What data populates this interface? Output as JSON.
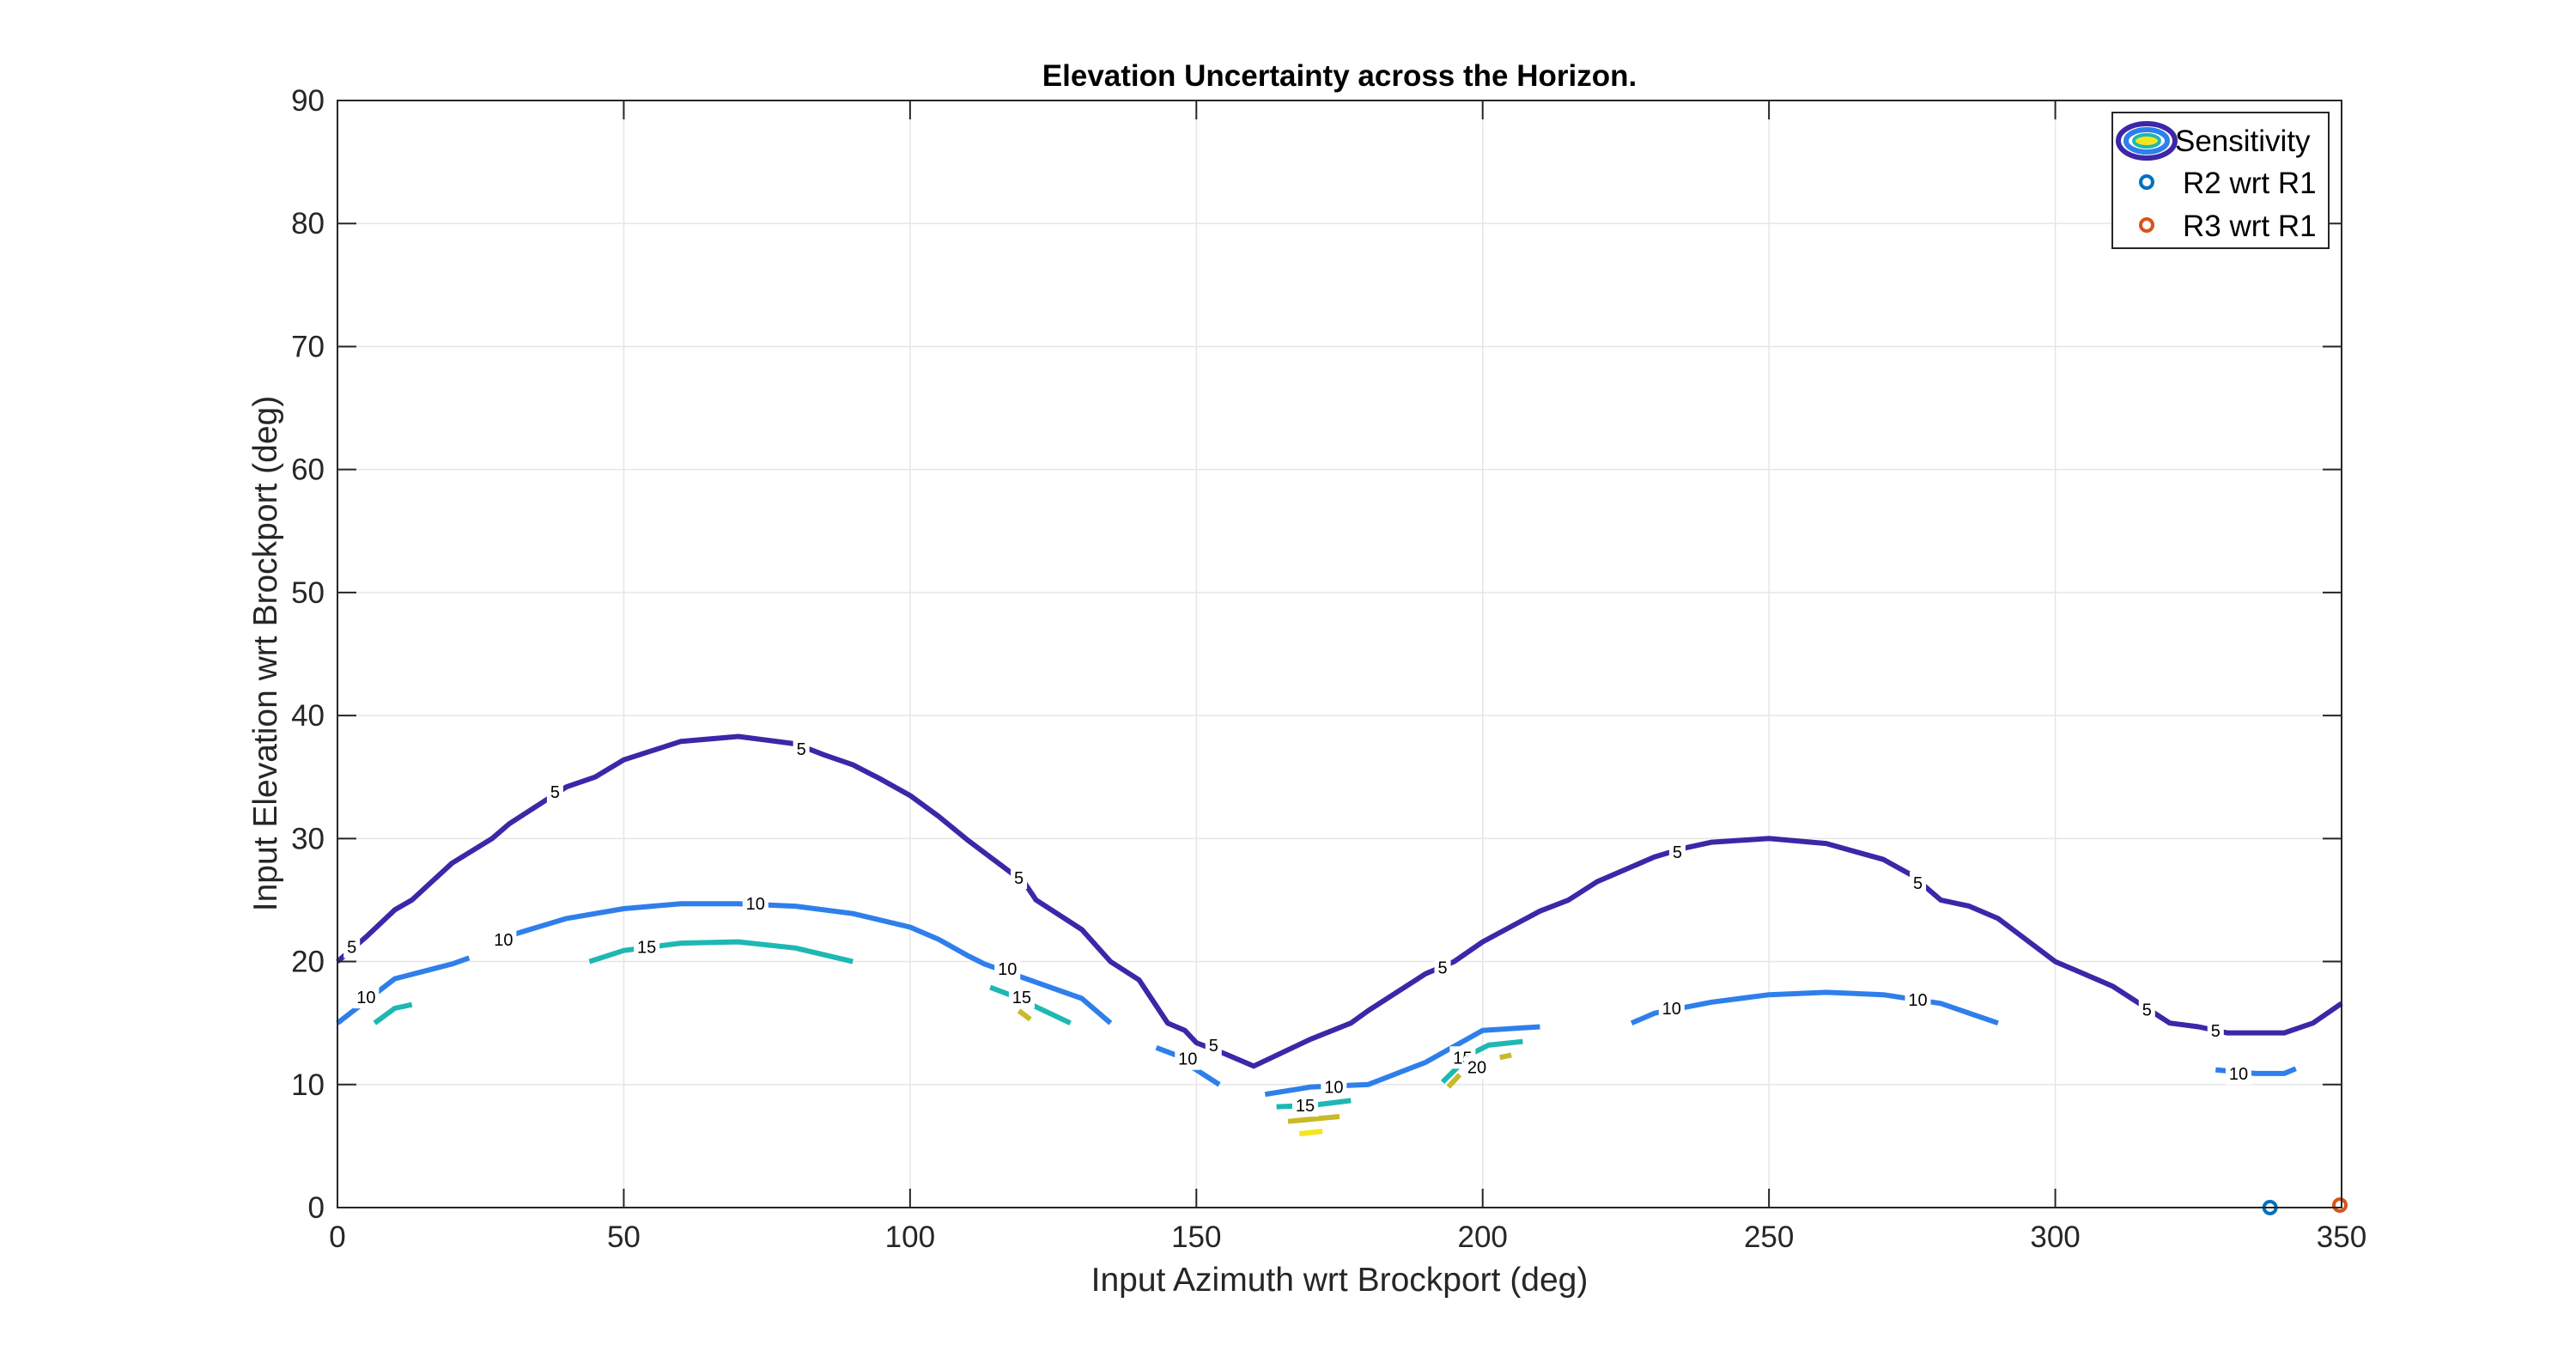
{
  "chart_data": {
    "type": "contour",
    "title": "Elevation Uncertainty across the Horizon.",
    "xlabel": "Input Azimuth wrt Brockport (deg)",
    "ylabel": "Input Elevation wrt Brockport (deg)",
    "xlim": [
      0,
      350
    ],
    "ylim": [
      0,
      90
    ],
    "xticks": [
      0,
      50,
      100,
      150,
      200,
      250,
      300,
      350
    ],
    "yticks": [
      0,
      10,
      20,
      30,
      40,
      50,
      60,
      70,
      80,
      90
    ],
    "grid": true,
    "legend": {
      "placement": "top-right",
      "entries": [
        {
          "label": "Sensitivity",
          "marker": "contour-swatch"
        },
        {
          "label": "R2 wrt R1",
          "marker": "circle",
          "color": "#0072BD"
        },
        {
          "label": "R3 wrt R1",
          "marker": "circle",
          "color": "#D95319"
        }
      ]
    },
    "contours": [
      {
        "level": 5,
        "color": "#3E26A8",
        "segments": [
          [
            [
              0,
              20
            ],
            [
              5,
              22
            ],
            [
              10,
              24.2
            ],
            [
              13,
              25
            ],
            [
              20,
              28
            ],
            [
              27,
              30
            ],
            [
              30,
              31.2
            ],
            [
              40,
              34.2
            ],
            [
              45,
              35
            ],
            [
              50,
              36.4
            ],
            [
              60,
              37.9
            ],
            [
              70,
              38.3
            ],
            [
              80,
              37.7
            ],
            [
              85,
              36.8
            ],
            [
              90,
              36
            ],
            [
              95,
              34.8
            ],
            [
              100,
              33.5
            ],
            [
              105,
              31.8
            ],
            [
              110,
              29.9
            ],
            [
              120,
              26.4
            ],
            [
              122,
              25
            ],
            [
              130,
              22.6
            ],
            [
              135,
              20
            ],
            [
              140,
              18.5
            ],
            [
              145,
              15
            ],
            [
              148,
              14.4
            ],
            [
              150,
              13.4
            ],
            [
              155,
              12.5
            ],
            [
              160,
              11.5
            ],
            [
              170,
              13.7
            ],
            [
              177,
              15
            ],
            [
              180,
              16
            ],
            [
              190,
              19
            ],
            [
              195,
              20
            ],
            [
              200,
              21.6
            ],
            [
              210,
              24.1
            ],
            [
              215,
              25
            ],
            [
              220,
              26.5
            ],
            [
              230,
              28.5
            ],
            [
              235,
              29.2
            ],
            [
              240,
              29.7
            ],
            [
              250,
              30
            ],
            [
              260,
              29.6
            ],
            [
              270,
              28.3
            ],
            [
              275,
              27
            ],
            [
              280,
              25
            ],
            [
              285,
              24.5
            ],
            [
              290,
              23.5
            ],
            [
              300,
              20
            ],
            [
              310,
              18
            ],
            [
              315,
              16.5
            ],
            [
              320,
              15
            ],
            [
              325,
              14.7
            ],
            [
              330,
              14.2
            ],
            [
              340,
              14.2
            ],
            [
              345,
              15
            ],
            [
              350,
              16.6
            ]
          ]
        ],
        "labels": [
          {
            "x": 2.5,
            "y": 21.2,
            "text": "5"
          },
          {
            "x": 38,
            "y": 33.8,
            "text": "5"
          },
          {
            "x": 81,
            "y": 37.3,
            "text": "5"
          },
          {
            "x": 119,
            "y": 26.8,
            "text": "5"
          },
          {
            "x": 153,
            "y": 13.2,
            "text": "5"
          },
          {
            "x": 193,
            "y": 19.5,
            "text": "5"
          },
          {
            "x": 234,
            "y": 28.9,
            "text": "5"
          },
          {
            "x": 276,
            "y": 26.4,
            "text": "5"
          },
          {
            "x": 316,
            "y": 16.1,
            "text": "5"
          },
          {
            "x": 328,
            "y": 14.4,
            "text": "5"
          }
        ]
      },
      {
        "level": 10,
        "color": "#2F7FEB",
        "segments": [
          [
            [
              0,
              15
            ],
            [
              10,
              18.6
            ],
            [
              20,
              19.8
            ],
            [
              23,
              20.3
            ]
          ],
          [
            [
              27,
              21.6
            ],
            [
              30,
              22.1
            ],
            [
              40,
              23.5
            ],
            [
              50,
              24.3
            ],
            [
              60,
              24.7
            ],
            [
              70,
              24.7
            ],
            [
              80,
              24.5
            ],
            [
              90,
              23.9
            ],
            [
              100,
              22.8
            ],
            [
              105,
              21.8
            ],
            [
              110,
              20.5
            ],
            [
              113,
              19.8
            ],
            [
              130,
              17
            ],
            [
              135,
              15
            ]
          ],
          [
            [
              143,
              13
            ],
            [
              147,
              12.3
            ],
            [
              148,
              11.8
            ],
            [
              154,
              10
            ]
          ],
          [
            [
              162,
              9.2
            ],
            [
              170,
              9.8
            ],
            [
              180,
              10
            ],
            [
              190,
              11.8
            ],
            [
              200,
              14.4
            ],
            [
              210,
              14.7
            ]
          ],
          [
            [
              226,
              15
            ],
            [
              230,
              15.8
            ],
            [
              240,
              16.7
            ],
            [
              250,
              17.3
            ],
            [
              260,
              17.5
            ],
            [
              270,
              17.3
            ],
            [
              280,
              16.6
            ],
            [
              290,
              15
            ]
          ],
          [
            [
              328,
              11.2
            ],
            [
              335,
              10.9
            ],
            [
              340,
              10.9
            ],
            [
              342,
              11.3
            ]
          ]
        ],
        "labels": [
          {
            "x": 5,
            "y": 17.1,
            "text": "10"
          },
          {
            "x": 29,
            "y": 21.8,
            "text": "10"
          },
          {
            "x": 73,
            "y": 24.7,
            "text": "10"
          },
          {
            "x": 117,
            "y": 19.4,
            "text": "10"
          },
          {
            "x": 148.5,
            "y": 12.1,
            "text": "10"
          },
          {
            "x": 174,
            "y": 9.8,
            "text": "10"
          },
          {
            "x": 233,
            "y": 16.2,
            "text": "10"
          },
          {
            "x": 276,
            "y": 16.9,
            "text": "10"
          },
          {
            "x": 332,
            "y": 10.9,
            "text": "10"
          }
        ]
      },
      {
        "level": 15,
        "color": "#1DB8B3",
        "segments": [
          [
            [
              6.5,
              15
            ],
            [
              10,
              16.2
            ],
            [
              13,
              16.5
            ]
          ],
          [
            [
              44,
              20
            ],
            [
              50,
              20.9
            ],
            [
              60,
              21.5
            ],
            [
              70,
              21.6
            ],
            [
              80,
              21.1
            ],
            [
              90,
              20
            ]
          ],
          [
            [
              114,
              17.9
            ],
            [
              118,
              17.2
            ],
            [
              128,
              15
            ]
          ],
          [
            [
              164,
              8.2
            ],
            [
              170,
              8.3
            ],
            [
              177,
              8.7
            ]
          ],
          [
            [
              193,
              10.2
            ],
            [
              198,
              12.5
            ],
            [
              201,
              13.2
            ],
            [
              207,
              13.5
            ]
          ]
        ],
        "labels": [
          {
            "x": 54,
            "y": 21.2,
            "text": "15"
          },
          {
            "x": 119.5,
            "y": 17.1,
            "text": "15"
          },
          {
            "x": 169,
            "y": 8.3,
            "text": "15"
          },
          {
            "x": 196.5,
            "y": 12.2,
            "text": "15"
          }
        ]
      },
      {
        "level": 20,
        "color": "#C8BA28",
        "segments": [
          [
            [
              119,
              16
            ],
            [
              121,
              15.3
            ]
          ],
          [
            [
              166,
              7
            ],
            [
              175,
              7.4
            ]
          ],
          [
            [
              194,
              9.8
            ],
            [
              196,
              10.8
            ]
          ],
          [
            [
              203,
              12.2
            ],
            [
              205,
              12.4
            ]
          ]
        ],
        "labels": [
          {
            "x": 199,
            "y": 11.4,
            "text": "20"
          }
        ]
      },
      {
        "level": 25,
        "color": "#F5E51E",
        "segments": [
          [
            [
              168,
              6
            ],
            [
              172,
              6.2
            ]
          ],
          [
            [
              199,
              11
            ],
            [
              201,
              11.3
            ]
          ]
        ],
        "labels": []
      }
    ],
    "points": [
      {
        "name": "R2 wrt R1",
        "x": 337.5,
        "y": 0,
        "color": "#0072BD"
      },
      {
        "name": "R3 wrt R1",
        "x": 349.7,
        "y": 0.2,
        "color": "#D95319"
      }
    ]
  }
}
